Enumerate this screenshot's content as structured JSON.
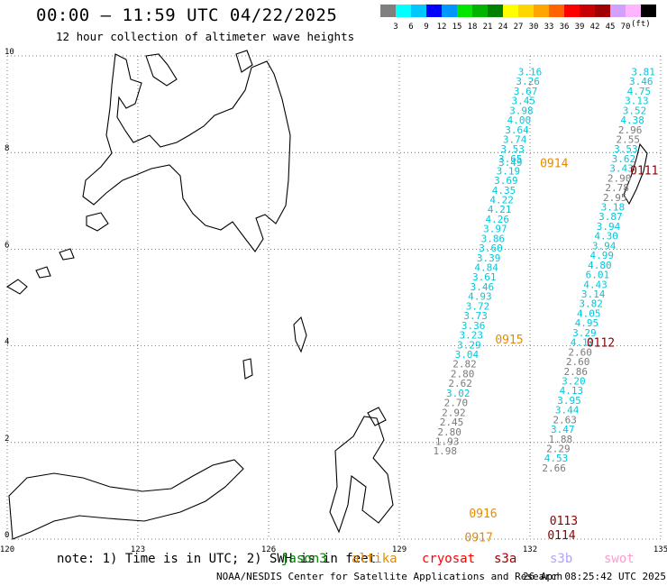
{
  "title": "00:00 – 11:59 UTC 04/22/2025",
  "subtitle": "12 hour collection of altimeter wave heights",
  "colorbar": {
    "colors": [
      "#7f7f7f",
      "#00ffff",
      "#00c8ff",
      "#0000ff",
      "#0096ff",
      "#00e600",
      "#00b400",
      "#008000",
      "#ffff00",
      "#ffd700",
      "#ffa500",
      "#ff6400",
      "#ff0000",
      "#c80000",
      "#a00000",
      "#d2a0ff",
      "#ffb4ff",
      "#000000"
    ],
    "labels": [
      "3",
      "6",
      "9",
      "12",
      "15",
      "18",
      "21",
      "24",
      "27",
      "30",
      "33",
      "36",
      "39",
      "42",
      "45",
      "70"
    ],
    "units": "(ft)"
  },
  "axes": {
    "x_ticks": [
      "120",
      "123",
      "126",
      "129",
      "132",
      "135"
    ],
    "y_ticks": [
      "0",
      "2",
      "4",
      "6",
      "8",
      "10"
    ]
  },
  "tracks": {
    "colors": {
      "cyan": "#00c8dc",
      "gray": "#7a7a7a",
      "orange": "#e68a00",
      "darkred": "#8b0000"
    },
    "labels": [
      {
        "text": "0914",
        "lon": 132.23,
        "lat": 7.7,
        "color": "#e68a00"
      },
      {
        "text": "0915",
        "lon": 131.2,
        "lat": 4.05,
        "color": "#e68a00"
      },
      {
        "text": "0916",
        "lon": 130.6,
        "lat": 0.45,
        "color": "#e68a00"
      },
      {
        "text": "0917",
        "lon": 130.5,
        "lat": -0.05,
        "color": "#e68a00"
      },
      {
        "text": "0111",
        "lon": 134.3,
        "lat": 7.55,
        "color": "#8b0000"
      },
      {
        "text": "0112",
        "lon": 133.3,
        "lat": 3.98,
        "color": "#8b0000"
      },
      {
        "text": "0113",
        "lon": 132.45,
        "lat": 0.3,
        "color": "#8b0000"
      },
      {
        "text": "0114",
        "lon": 132.4,
        "lat": 0.0,
        "color": "#8b0000"
      }
    ],
    "readings": [
      {
        "v": "3.16",
        "lon": 132.0,
        "lat": 9.6,
        "c": "cyan"
      },
      {
        "v": "3.26",
        "lon": 131.95,
        "lat": 9.4,
        "c": "cyan"
      },
      {
        "v": "3.67",
        "lon": 131.9,
        "lat": 9.2,
        "c": "cyan"
      },
      {
        "v": "3.45",
        "lon": 131.85,
        "lat": 9.0,
        "c": "cyan"
      },
      {
        "v": "3.98",
        "lon": 131.8,
        "lat": 8.8,
        "c": "cyan"
      },
      {
        "v": "4.00",
        "lon": 131.75,
        "lat": 8.6,
        "c": "cyan"
      },
      {
        "v": "3.64",
        "lon": 131.7,
        "lat": 8.4,
        "c": "cyan"
      },
      {
        "v": "3.74",
        "lon": 131.65,
        "lat": 8.2,
        "c": "cyan"
      },
      {
        "v": "3.53",
        "lon": 131.6,
        "lat": 8.0,
        "c": "cyan"
      },
      {
        "v": "3.65",
        "lon": 131.55,
        "lat": 7.8,
        "c": "cyan"
      },
      {
        "v": "3.49",
        "lon": 131.55,
        "lat": 7.72,
        "c": "cyan"
      },
      {
        "v": "3.19",
        "lon": 131.5,
        "lat": 7.55,
        "c": "cyan"
      },
      {
        "v": "3.69",
        "lon": 131.45,
        "lat": 7.35,
        "c": "cyan"
      },
      {
        "v": "4.35",
        "lon": 131.4,
        "lat": 7.15,
        "c": "cyan"
      },
      {
        "v": "4.22",
        "lon": 131.35,
        "lat": 6.95,
        "c": "cyan"
      },
      {
        "v": "4.21",
        "lon": 131.3,
        "lat": 6.75,
        "c": "cyan"
      },
      {
        "v": "4.26",
        "lon": 131.25,
        "lat": 6.55,
        "c": "cyan"
      },
      {
        "v": "3.97",
        "lon": 131.2,
        "lat": 6.35,
        "c": "cyan"
      },
      {
        "v": "3.86",
        "lon": 131.15,
        "lat": 6.15,
        "c": "cyan"
      },
      {
        "v": "3.60",
        "lon": 131.1,
        "lat": 5.95,
        "c": "cyan"
      },
      {
        "v": "3.39",
        "lon": 131.05,
        "lat": 5.75,
        "c": "cyan"
      },
      {
        "v": "4.84",
        "lon": 131.0,
        "lat": 5.55,
        "c": "cyan"
      },
      {
        "v": "3.61",
        "lon": 130.95,
        "lat": 5.35,
        "c": "cyan"
      },
      {
        "v": "3.46",
        "lon": 130.9,
        "lat": 5.15,
        "c": "cyan"
      },
      {
        "v": "4.93",
        "lon": 130.85,
        "lat": 4.95,
        "c": "cyan"
      },
      {
        "v": "3.72",
        "lon": 130.8,
        "lat": 4.75,
        "c": "cyan"
      },
      {
        "v": "3.73",
        "lon": 130.75,
        "lat": 4.55,
        "c": "cyan"
      },
      {
        "v": "3.36",
        "lon": 130.7,
        "lat": 4.35,
        "c": "cyan"
      },
      {
        "v": "3.23",
        "lon": 130.65,
        "lat": 4.15,
        "c": "cyan"
      },
      {
        "v": "3.29",
        "lon": 130.6,
        "lat": 3.95,
        "c": "cyan"
      },
      {
        "v": "3.04",
        "lon": 130.55,
        "lat": 3.75,
        "c": "cyan"
      },
      {
        "v": "2.82",
        "lon": 130.5,
        "lat": 3.55,
        "c": "gray"
      },
      {
        "v": "2.80",
        "lon": 130.45,
        "lat": 3.35,
        "c": "gray"
      },
      {
        "v": "2.62",
        "lon": 130.4,
        "lat": 3.15,
        "c": "gray"
      },
      {
        "v": "3.02",
        "lon": 130.35,
        "lat": 2.95,
        "c": "cyan"
      },
      {
        "v": "2.70",
        "lon": 130.3,
        "lat": 2.75,
        "c": "gray"
      },
      {
        "v": "2.92",
        "lon": 130.25,
        "lat": 2.55,
        "c": "gray"
      },
      {
        "v": "2.45",
        "lon": 130.2,
        "lat": 2.35,
        "c": "gray"
      },
      {
        "v": "2.80",
        "lon": 130.15,
        "lat": 2.15,
        "c": "gray"
      },
      {
        "v": "1.93",
        "lon": 130.1,
        "lat": 1.95,
        "c": "gray"
      },
      {
        "v": "1.98",
        "lon": 130.05,
        "lat": 1.75,
        "c": "gray"
      },
      {
        "v": "3.81",
        "lon": 134.6,
        "lat": 9.6,
        "c": "cyan"
      },
      {
        "v": "3.46",
        "lon": 134.55,
        "lat": 9.4,
        "c": "cyan"
      },
      {
        "v": "4.75",
        "lon": 134.5,
        "lat": 9.2,
        "c": "cyan"
      },
      {
        "v": "3.13",
        "lon": 134.45,
        "lat": 9.0,
        "c": "cyan"
      },
      {
        "v": "3.52",
        "lon": 134.4,
        "lat": 8.8,
        "c": "cyan"
      },
      {
        "v": "4.38",
        "lon": 134.35,
        "lat": 8.6,
        "c": "cyan"
      },
      {
        "v": "2.96",
        "lon": 134.3,
        "lat": 8.4,
        "c": "gray"
      },
      {
        "v": "2.55",
        "lon": 134.25,
        "lat": 8.2,
        "c": "gray"
      },
      {
        "v": "3.53",
        "lon": 134.2,
        "lat": 8.0,
        "c": "cyan"
      },
      {
        "v": "3.62",
        "lon": 134.15,
        "lat": 7.8,
        "c": "cyan"
      },
      {
        "v": "3.43",
        "lon": 134.1,
        "lat": 7.6,
        "c": "cyan"
      },
      {
        "v": "2.90",
        "lon": 134.05,
        "lat": 7.4,
        "c": "gray"
      },
      {
        "v": "2.78",
        "lon": 134.0,
        "lat": 7.2,
        "c": "gray"
      },
      {
        "v": "2.95",
        "lon": 133.95,
        "lat": 7.0,
        "c": "gray"
      },
      {
        "v": "3.18",
        "lon": 133.9,
        "lat": 6.8,
        "c": "cyan"
      },
      {
        "v": "3.87",
        "lon": 133.85,
        "lat": 6.6,
        "c": "cyan"
      },
      {
        "v": "3.94",
        "lon": 133.8,
        "lat": 6.4,
        "c": "cyan"
      },
      {
        "v": "4.30",
        "lon": 133.75,
        "lat": 6.2,
        "c": "cyan"
      },
      {
        "v": "3.94",
        "lon": 133.7,
        "lat": 6.0,
        "c": "cyan"
      },
      {
        "v": "4.99",
        "lon": 133.65,
        "lat": 5.8,
        "c": "cyan"
      },
      {
        "v": "4.80",
        "lon": 133.6,
        "lat": 5.6,
        "c": "cyan"
      },
      {
        "v": "6.01",
        "lon": 133.55,
        "lat": 5.4,
        "c": "cyan"
      },
      {
        "v": "4.43",
        "lon": 133.5,
        "lat": 5.2,
        "c": "cyan"
      },
      {
        "v": "3.14",
        "lon": 133.45,
        "lat": 5.0,
        "c": "cyan"
      },
      {
        "v": "3.82",
        "lon": 133.4,
        "lat": 4.8,
        "c": "cyan"
      },
      {
        "v": "4.05",
        "lon": 133.35,
        "lat": 4.6,
        "c": "cyan"
      },
      {
        "v": "4.95",
        "lon": 133.3,
        "lat": 4.4,
        "c": "cyan"
      },
      {
        "v": "3.29",
        "lon": 133.25,
        "lat": 4.2,
        "c": "cyan"
      },
      {
        "v": "4.12",
        "lon": 133.2,
        "lat": 4.0,
        "c": "cyan"
      },
      {
        "v": "2.60",
        "lon": 133.15,
        "lat": 3.8,
        "c": "gray"
      },
      {
        "v": "2.60",
        "lon": 133.1,
        "lat": 3.6,
        "c": "gray"
      },
      {
        "v": "2.86",
        "lon": 133.05,
        "lat": 3.4,
        "c": "gray"
      },
      {
        "v": "3.20",
        "lon": 133.0,
        "lat": 3.2,
        "c": "cyan"
      },
      {
        "v": "4.13",
        "lon": 132.95,
        "lat": 3.0,
        "c": "cyan"
      },
      {
        "v": "3.95",
        "lon": 132.9,
        "lat": 2.8,
        "c": "cyan"
      },
      {
        "v": "3.44",
        "lon": 132.85,
        "lat": 2.6,
        "c": "cyan"
      },
      {
        "v": "2.63",
        "lon": 132.8,
        "lat": 2.4,
        "c": "gray"
      },
      {
        "v": "3.47",
        "lon": 132.75,
        "lat": 2.2,
        "c": "cyan"
      },
      {
        "v": "1.88",
        "lon": 132.7,
        "lat": 2.0,
        "c": "gray"
      },
      {
        "v": "2.29",
        "lon": 132.65,
        "lat": 1.8,
        "c": "gray"
      },
      {
        "v": "4.53",
        "lon": 132.6,
        "lat": 1.6,
        "c": "cyan"
      },
      {
        "v": "2.66",
        "lon": 132.55,
        "lat": 1.4,
        "c": "gray"
      }
    ]
  },
  "note": "note: 1) Time is in UTC; 2) SWH is in feet",
  "legend": [
    {
      "name": "jason3",
      "color": "#008000"
    },
    {
      "name": "altika",
      "color": "#e68a00"
    },
    {
      "name": "cryosat",
      "color": "#ff0000"
    },
    {
      "name": "s3a",
      "color": "#a00000"
    },
    {
      "name": "s3b",
      "color": "#b4a0ff"
    },
    {
      "name": "swot",
      "color": "#ff9bd2"
    }
  ],
  "footer": "NOAA/NESDIS Center for Satellite Applications and Research",
  "stamp": "26 Apr 08:25:42 UTC 2025"
}
